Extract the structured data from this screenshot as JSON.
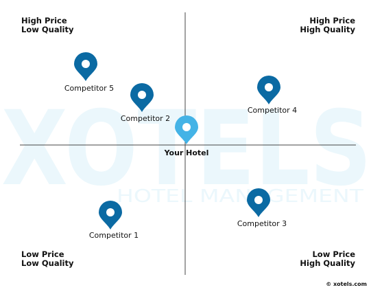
{
  "watermark": {
    "brand": "XOTELS",
    "tagline": "HOTEL MANAGEMENT",
    "color": "#ebf7fc"
  },
  "quadrants": {
    "top_left": {
      "line1": "High Price",
      "line2": "Low Quality"
    },
    "top_right": {
      "line1": "High Price",
      "line2": "High Quality"
    },
    "bottom_left": {
      "line1": "Low Price",
      "line2": "Low Quality"
    },
    "bottom_right": {
      "line1": "Low Price",
      "line2": "High Quality"
    }
  },
  "markers": [
    {
      "id": "competitor-5",
      "label": "Competitor 5",
      "kind": "competitor",
      "color": "#0b6aa3"
    },
    {
      "id": "competitor-2",
      "label": "Competitor 2",
      "kind": "competitor",
      "color": "#0b6aa3"
    },
    {
      "id": "competitor-4",
      "label": "Competitor 4",
      "kind": "competitor",
      "color": "#0b6aa3"
    },
    {
      "id": "your-hotel",
      "label": "Your Hotel",
      "kind": "own",
      "color": "#44b3e6"
    },
    {
      "id": "competitor-1",
      "label": "Competitor 1",
      "kind": "competitor",
      "color": "#0b6aa3"
    },
    {
      "id": "competitor-3",
      "label": "Competitor 3",
      "kind": "competitor",
      "color": "#0b6aa3"
    }
  ],
  "copyright": "© xotels.com",
  "colors": {
    "axis": "#444444",
    "text": "#111111"
  }
}
